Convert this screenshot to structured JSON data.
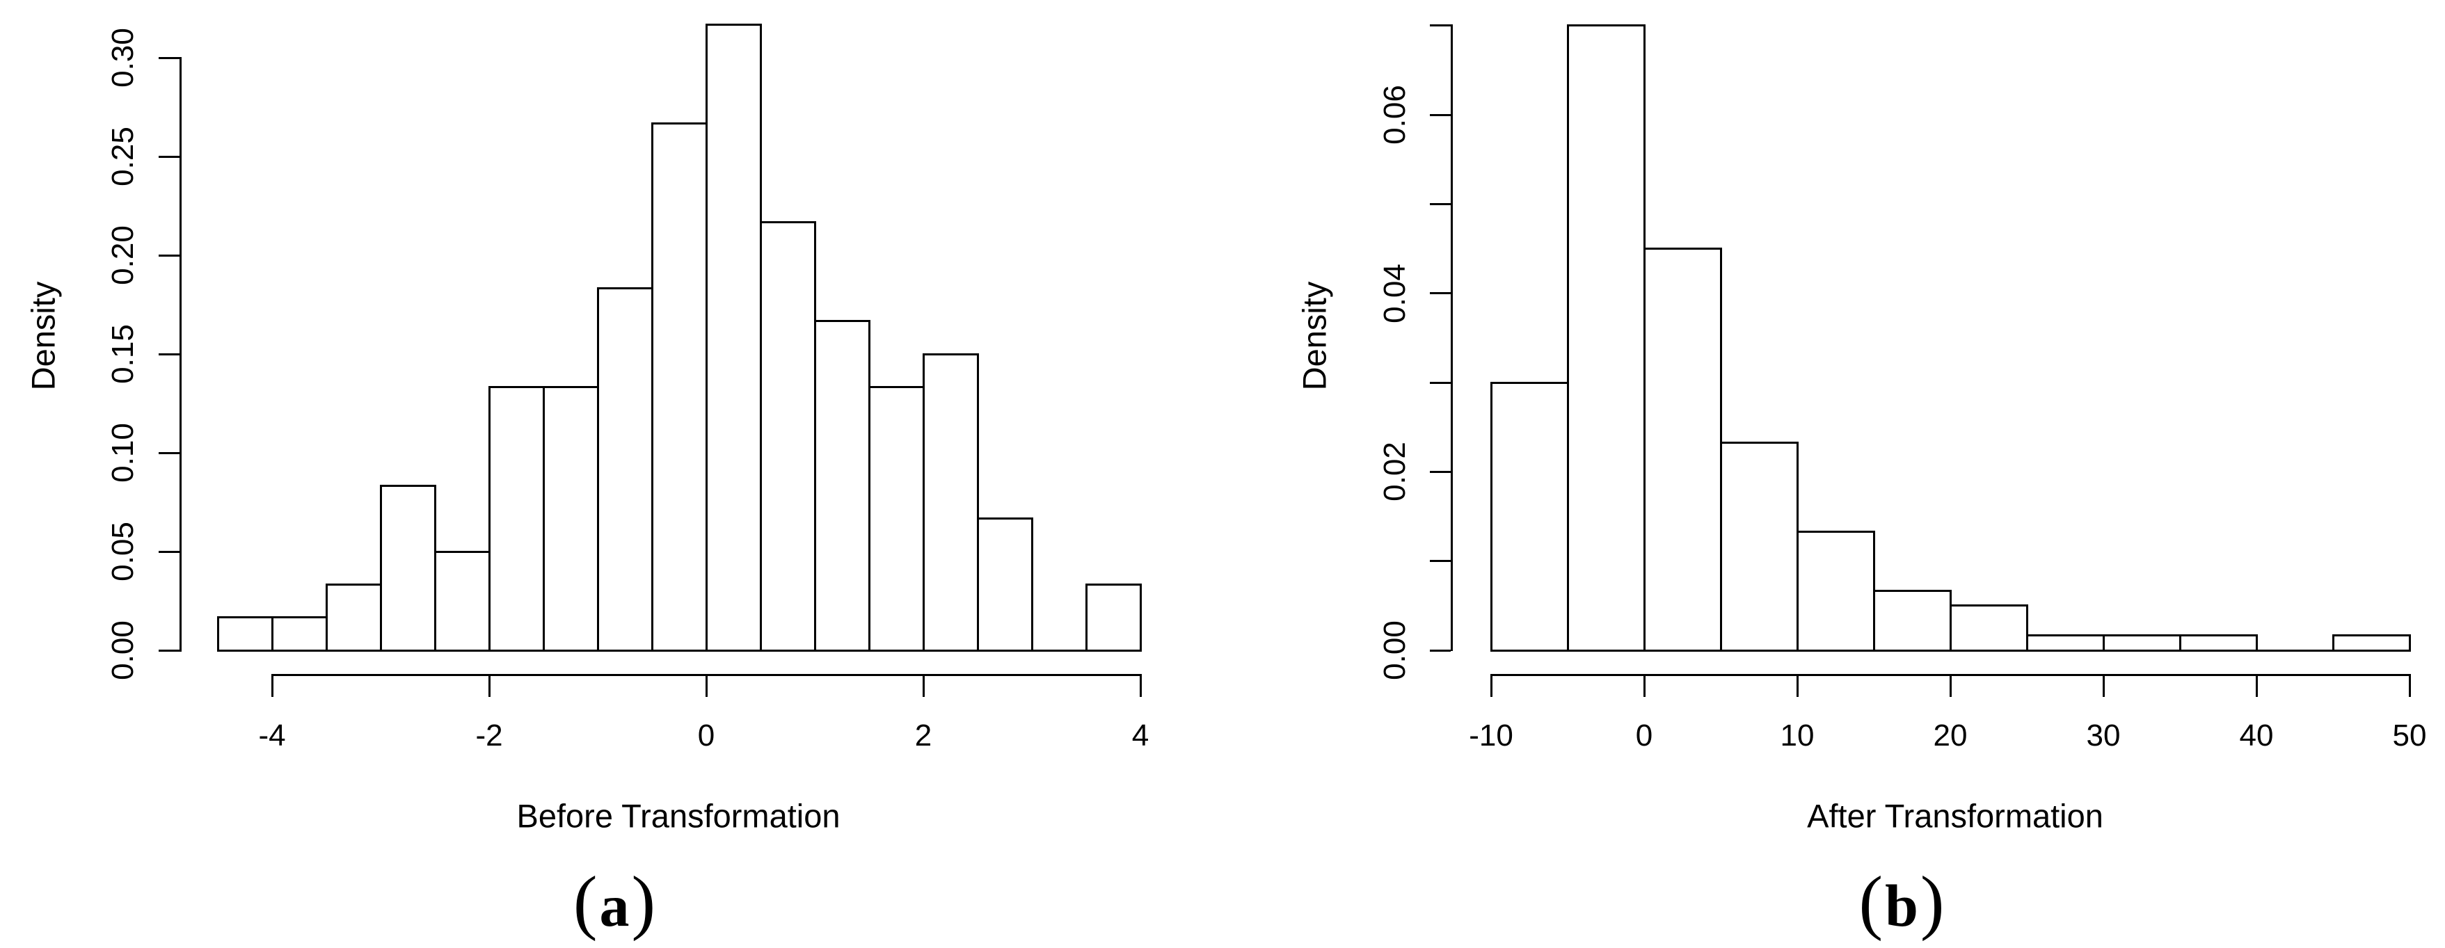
{
  "figure": {
    "background_color": "#ffffff",
    "line_color": "#000000",
    "panels": [
      {
        "caption": "(a)",
        "caption_open": "(",
        "caption_letter": "a",
        "caption_close": ")",
        "xlabel": "Before Transformation",
        "ylabel": "Density"
      },
      {
        "caption": "(b)",
        "caption_open": "(",
        "caption_letter": "b",
        "caption_close": ")",
        "xlabel": "After Transformation",
        "ylabel": "Density"
      }
    ]
  },
  "chart_data": [
    {
      "type": "bar",
      "subtype": "histogram",
      "title": "",
      "xlabel": "Before Transformation",
      "ylabel": "Density",
      "bin_edges": [
        -4.5,
        -4.0,
        -3.5,
        -3.0,
        -2.5,
        -2.0,
        -1.5,
        -1.0,
        -0.5,
        0.0,
        0.5,
        1.0,
        1.5,
        2.0,
        2.5,
        3.0,
        3.5,
        4.0
      ],
      "values": [
        0.0167,
        0.0167,
        0.0333,
        0.0833,
        0.05,
        0.1333,
        0.1333,
        0.1833,
        0.2667,
        0.3167,
        0.2167,
        0.1667,
        0.1333,
        0.15,
        0.0667,
        0,
        0.0333
      ],
      "xticks": [
        -4,
        -2,
        0,
        2,
        4
      ],
      "xtick_labels": [
        "-4",
        "-2",
        "0",
        "2",
        "4"
      ],
      "yticks": [
        0.0,
        0.05,
        0.1,
        0.15,
        0.2,
        0.25,
        0.3
      ],
      "ytick_labels": [
        "0.00",
        "0.05",
        "0.10",
        "0.15",
        "0.20",
        "0.25",
        "0.30"
      ],
      "xlim": [
        -4.5,
        4
      ],
      "ylim": [
        0,
        0.3167
      ],
      "grid": false,
      "legend": false,
      "bar_fill": "#ffffff",
      "bar_stroke": "#000000"
    },
    {
      "type": "bar",
      "subtype": "histogram",
      "title": "",
      "xlabel": "After Transformation",
      "ylabel": "Density",
      "bin_edges": [
        -10,
        -5,
        0,
        5,
        10,
        15,
        20,
        25,
        30,
        35,
        40,
        45,
        50
      ],
      "values": [
        0.03,
        0.07,
        0.045,
        0.0233,
        0.0133,
        0.0067,
        0.005,
        0.0017,
        0.0017,
        0.0017,
        0,
        0.0017
      ],
      "xticks": [
        -10,
        0,
        10,
        20,
        30,
        40,
        50
      ],
      "xtick_labels": [
        "-10",
        "0",
        "10",
        "20",
        "30",
        "40",
        "50"
      ],
      "yticks": [
        0.0,
        0.01,
        0.02,
        0.03,
        0.04,
        0.05,
        0.06,
        0.07
      ],
      "ytick_labels": [
        "0.00",
        "",
        "0.02",
        "",
        "0.04",
        "",
        "0.06",
        ""
      ],
      "xlim": [
        -10,
        50
      ],
      "ylim": [
        0,
        0.07
      ],
      "grid": false,
      "legend": false,
      "bar_fill": "#ffffff",
      "bar_stroke": "#000000"
    }
  ]
}
